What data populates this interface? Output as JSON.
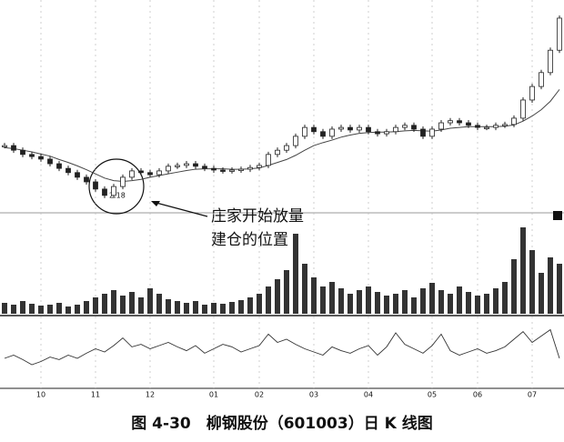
{
  "chart_data": {
    "type": "candlestick",
    "title": "图 4-30　柳钢股份（601003）日 K 线图",
    "annotation": [
      "庄家开始放量",
      "建仓的位置"
    ],
    "low_label": "2.18",
    "xlim": [
      0,
      61
    ],
    "xticks": [
      {
        "value": 4,
        "label": "10"
      },
      {
        "value": 10,
        "label": "11"
      },
      {
        "value": 16,
        "label": "12"
      },
      {
        "value": 23,
        "label": "01"
      },
      {
        "value": 28,
        "label": "02"
      },
      {
        "value": 34,
        "label": "03"
      },
      {
        "value": 40,
        "label": "04"
      },
      {
        "value": 47,
        "label": "05"
      },
      {
        "value": 52,
        "label": "06"
      },
      {
        "value": 58,
        "label": "07"
      }
    ],
    "ylim": [
      1.9,
      6.9
    ],
    "price": {
      "color": "#222",
      "values": [
        3.45,
        3.34,
        3.24,
        3.19,
        3.13,
        3.02,
        2.91,
        2.81,
        2.7,
        2.59,
        2.42,
        2.27,
        2.48,
        2.7,
        2.85,
        2.81,
        2.76,
        2.85,
        2.96,
        2.98,
        3.02,
        2.96,
        2.91,
        2.87,
        2.85,
        2.87,
        2.89,
        2.93,
        2.98,
        3.24,
        3.34,
        3.45,
        3.67,
        3.88,
        3.78,
        3.67,
        3.84,
        3.88,
        3.82,
        3.88,
        3.78,
        3.73,
        3.78,
        3.88,
        3.93,
        3.84,
        3.67,
        3.84,
        3.99,
        4.04,
        3.99,
        3.93,
        3.88,
        3.88,
        3.93,
        3.95,
        4.1,
        4.53,
        4.85,
        5.18,
        5.71,
        6.47
      ]
    },
    "ma": {
      "color": "#444",
      "values": [
        3.4,
        3.38,
        3.34,
        3.3,
        3.25,
        3.2,
        3.12,
        3.05,
        2.97,
        2.88,
        2.78,
        2.68,
        2.62,
        2.6,
        2.62,
        2.65,
        2.7,
        2.74,
        2.78,
        2.82,
        2.86,
        2.89,
        2.9,
        2.9,
        2.9,
        2.89,
        2.89,
        2.9,
        2.92,
        2.98,
        3.05,
        3.12,
        3.22,
        3.34,
        3.45,
        3.52,
        3.58,
        3.65,
        3.7,
        3.74,
        3.76,
        3.77,
        3.77,
        3.78,
        3.8,
        3.81,
        3.8,
        3.79,
        3.82,
        3.86,
        3.88,
        3.9,
        3.9,
        3.9,
        3.9,
        3.91,
        3.94,
        4.03,
        4.15,
        4.3,
        4.5,
        4.78
      ]
    },
    "volume": {
      "color": "#333",
      "ylim": [
        0,
        100
      ],
      "values": [
        12,
        10,
        14,
        11,
        9,
        10,
        12,
        8,
        10,
        14,
        18,
        22,
        26,
        20,
        24,
        18,
        28,
        22,
        16,
        14,
        12,
        14,
        10,
        12,
        11,
        13,
        15,
        18,
        22,
        30,
        38,
        48,
        88,
        55,
        40,
        30,
        35,
        28,
        22,
        26,
        30,
        24,
        20,
        22,
        26,
        18,
        28,
        34,
        26,
        22,
        30,
        24,
        20,
        22,
        28,
        35,
        60,
        95,
        70,
        45,
        62,
        55
      ]
    },
    "oscillator": {
      "color": "#333",
      "ylim": [
        0,
        100
      ],
      "values": [
        40,
        45,
        38,
        30,
        35,
        42,
        38,
        45,
        40,
        48,
        55,
        50,
        60,
        72,
        58,
        62,
        55,
        60,
        65,
        58,
        52,
        60,
        48,
        55,
        62,
        58,
        50,
        55,
        60,
        78,
        65,
        70,
        62,
        55,
        50,
        45,
        58,
        52,
        48,
        55,
        60,
        45,
        58,
        80,
        62,
        55,
        48,
        60,
        78,
        52,
        45,
        50,
        55,
        48,
        52,
        58,
        70,
        82,
        65,
        75,
        85,
        40
      ]
    },
    "grid": true
  }
}
